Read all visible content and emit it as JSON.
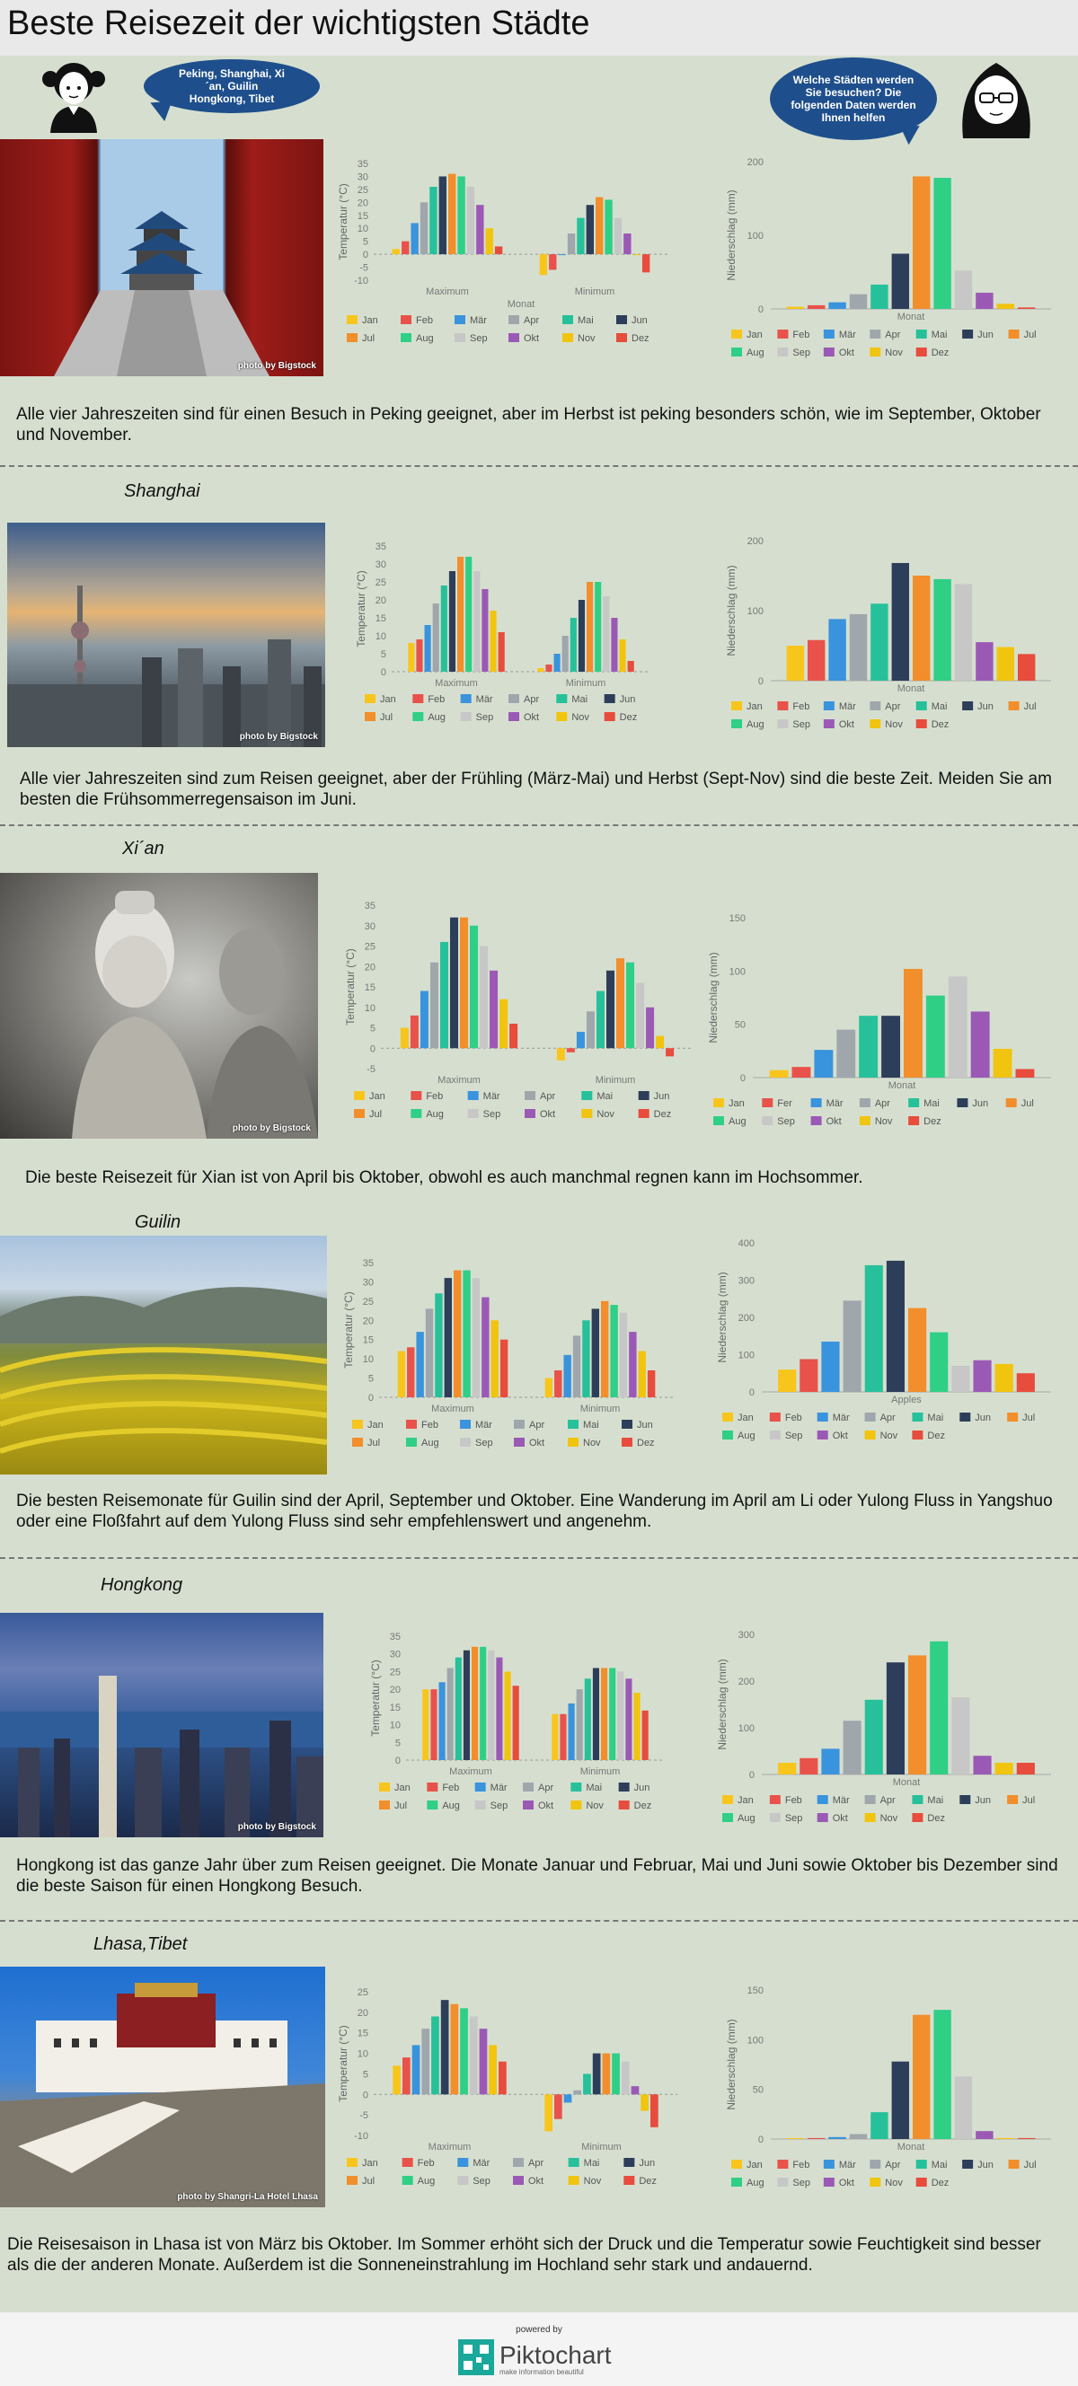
{
  "page": {
    "title": "Beste Reisezeit der wichtigsten Städte",
    "bubble_left": "Peking, Shanghai, Xi´an, Guilin Hongkong, Tibet",
    "bubble_right": "Welche Städten werden Sie besuchen? Die folgenden Daten werden Ihnen helfen",
    "powered": "powered by",
    "logo_name": "Piktochart",
    "logo_tag": "make information beautiful"
  },
  "colors": [
    "#f7c51c",
    "#e8524a",
    "#3a93dd",
    "#9fa7ad",
    "#26c19a",
    "#2d3e5a",
    "#f28e2b",
    "#2fcf86",
    "#c7c7c7",
    "#9b59b6",
    "#f1c40f",
    "#e74c3c"
  ],
  "months": [
    "Jan",
    "Feb",
    "Mär",
    "Apr",
    "Mai",
    "Jun",
    "Jul",
    "Aug",
    "Sep",
    "Okt",
    "Nov",
    "Dez"
  ],
  "sections": [
    {
      "name": "",
      "desc": "Alle vier Jahreszeiten sind für einen Besuch in Peking geeignet, aber im Herbst ist peking besonders schön, wie im September, Oktober und November.",
      "credit": "photo by Bigstock",
      "temp_chart": {
        "type": "bar",
        "ylabel": "Temperatur (°C)",
        "xlabel": "Monat",
        "groups": [
          "Maximum",
          "Minimum"
        ],
        "ylim": [
          -10,
          35
        ],
        "ticks": [
          35,
          30,
          25,
          20,
          15,
          10,
          5,
          0,
          -5,
          -10
        ],
        "legend_months": [
          "Jan",
          "Feb",
          "Mär",
          "Apr",
          "Mai",
          "Jun",
          "Jul",
          "Aug",
          "Sep",
          "Okt",
          "Nov",
          "Dez"
        ],
        "series": [
          {
            "group": "Maximum",
            "values": [
              2,
              5,
              12,
              20,
              26,
              30,
              31,
              30,
              26,
              19,
              10,
              3
            ]
          },
          {
            "group": "Minimum",
            "values": [
              -8,
              -6,
              0,
              8,
              14,
              19,
              22,
              21,
              14,
              8,
              0,
              -7
            ]
          }
        ]
      },
      "rain_chart": {
        "type": "bar",
        "ylabel": "Niederschlag (mm)",
        "xlabel": "Monat",
        "ylim": [
          0,
          200
        ],
        "ticks": [
          200,
          100,
          0
        ],
        "legend_months": [
          "Jan",
          "Feb",
          "Mär",
          "Apr",
          "Mai",
          "Jun",
          "Jul",
          "Aug",
          "Sep",
          "Okt",
          "Nov",
          "Dez"
        ],
        "values": [
          3,
          5,
          9,
          20,
          33,
          75,
          180,
          178,
          52,
          22,
          7,
          2
        ]
      }
    },
    {
      "name": "Shanghai",
      "desc": "Alle vier Jahreszeiten sind zum Reisen geeignet, aber der Frühling (März-Mai) und Herbst (Sept-Nov) sind die beste Zeit. Meiden Sie am besten die Frühsommerregensaison im Juni.",
      "credit": "photo by Bigstock",
      "temp_chart": {
        "type": "bar",
        "ylabel": "Temperatur (°C)",
        "xlabel": "",
        "groups": [
          "Maximum",
          "Minimum"
        ],
        "ylim": [
          0,
          35
        ],
        "ticks": [
          35,
          30,
          25,
          20,
          15,
          10,
          5,
          0
        ],
        "legend_months": [
          "Jan",
          "Feb",
          "Mär",
          "Apr",
          "Mai",
          "Jun",
          "Jul",
          "Aug",
          "Sep",
          "Okt",
          "Nov",
          "Dez"
        ],
        "series": [
          {
            "group": "Maximum",
            "values": [
              8,
              9,
              13,
              19,
              24,
              28,
              32,
              32,
              28,
              23,
              17,
              11
            ]
          },
          {
            "group": "Minimum",
            "values": [
              1,
              2,
              5,
              10,
              15,
              20,
              25,
              25,
              21,
              15,
              9,
              3
            ]
          }
        ]
      },
      "rain_chart": {
        "type": "bar",
        "ylabel": "Niederschlag (mm)",
        "xlabel": "Monat",
        "ylim": [
          0,
          200
        ],
        "ticks": [
          200,
          100,
          0
        ],
        "legend_months": [
          "Jan",
          "Feb",
          "Mär",
          "Apr",
          "Mai",
          "Jun",
          "Jul",
          "Aug",
          "Sep",
          "Okt",
          "Nov",
          "Dez"
        ],
        "values": [
          50,
          58,
          88,
          95,
          110,
          168,
          150,
          145,
          138,
          55,
          48,
          38
        ]
      }
    },
    {
      "name": "Xi´an",
      "desc": "Die beste Reisezeit für Xian ist von April bis Oktober, obwohl es auch manchmal regnen kann im Hochsommer.",
      "credit": "photo by Bigstock",
      "temp_chart": {
        "type": "bar",
        "ylabel": "Temperatur (°C)",
        "xlabel": "",
        "groups": [
          "Maximum",
          "Minimum"
        ],
        "ylim": [
          -5,
          35
        ],
        "ticks": [
          35,
          30,
          25,
          20,
          15,
          10,
          5,
          0,
          -5
        ],
        "legend_months": [
          "Jan",
          "Feb",
          "Mär",
          "Apr",
          "Mai",
          "Jun",
          "Jul",
          "Aug",
          "Sep",
          "Okt",
          "Nov",
          "Dez"
        ],
        "series": [
          {
            "group": "Maximum",
            "values": [
              5,
              8,
              14,
              21,
              26,
              32,
              32,
              30,
              25,
              19,
              12,
              6
            ]
          },
          {
            "group": "Minimum",
            "values": [
              -3,
              -1,
              4,
              9,
              14,
              19,
              22,
              21,
              16,
              10,
              3,
              -2
            ]
          }
        ]
      },
      "rain_chart": {
        "type": "bar",
        "ylabel": "Niederschlag (mm)",
        "xlabel": "Monat",
        "ylim": [
          0,
          150
        ],
        "ticks": [
          150,
          100,
          50,
          0
        ],
        "legend_months": [
          "Jan",
          "Fer",
          "Mär",
          "Apr",
          "Mai",
          "Jun",
          "Jul",
          "Aug",
          "Sep",
          "Okt",
          "Nov",
          "Dez"
        ],
        "values": [
          7,
          10,
          26,
          45,
          58,
          58,
          102,
          77,
          95,
          62,
          27,
          8
        ]
      }
    },
    {
      "name": "Guilin",
      "desc": "Die besten Reisemonate für Guilin sind der April, September und Oktober. Eine Wanderung im April am Li oder Yulong Fluss in Yangshuo oder eine Floßfahrt auf dem Yulong Fluss sind sehr empfehlenswert und angenehm.",
      "credit": "",
      "temp_chart": {
        "type": "bar",
        "ylabel": "Temperatur (°C)",
        "xlabel": "",
        "groups": [
          "Maximum",
          "Minimum"
        ],
        "ylim": [
          0,
          35
        ],
        "ticks": [
          35,
          30,
          25,
          20,
          15,
          10,
          5,
          0
        ],
        "legend_months": [
          "Jan",
          "Feb",
          "Mär",
          "Apr",
          "Mai",
          "Jun",
          "Jul",
          "Aug",
          "Sep",
          "Okt",
          "Nov",
          "Dez"
        ],
        "series": [
          {
            "group": "Maximum",
            "values": [
              12,
              13,
              17,
              23,
              27,
              31,
              33,
              33,
              31,
              26,
              20,
              15
            ]
          },
          {
            "group": "Minimum",
            "values": [
              5,
              7,
              11,
              16,
              20,
              23,
              25,
              24,
              22,
              17,
              12,
              7
            ]
          }
        ]
      },
      "rain_chart": {
        "type": "bar",
        "ylabel": "Niederschlag (mm)",
        "xlabel": "Apples",
        "ylim": [
          0,
          400
        ],
        "ticks": [
          400,
          300,
          200,
          100,
          0
        ],
        "legend_months": [
          "Jan",
          "Feb",
          "Mär",
          "Apr",
          "Mai",
          "Jun",
          "Jul",
          "Aug",
          "Sep",
          "Okt",
          "Nov",
          "Dez"
        ],
        "values": [
          60,
          88,
          135,
          245,
          340,
          352,
          225,
          160,
          70,
          85,
          75,
          50
        ]
      }
    },
    {
      "name": "Hongkong",
      "desc": "Hongkong ist das ganze Jahr über zum Reisen geeignet. Die Monate Januar und Februar, Mai und Juni sowie Oktober bis Dezember sind die beste Saison für einen Hongkong Besuch.",
      "credit": "photo by Bigstock",
      "temp_chart": {
        "type": "bar",
        "ylabel": "Temperatur (°C)",
        "xlabel": "",
        "groups": [
          "Maximum",
          "Minimum"
        ],
        "ylim": [
          0,
          35
        ],
        "ticks": [
          35,
          30,
          25,
          20,
          15,
          10,
          5,
          0
        ],
        "legend_months": [
          "Jan",
          "Feb",
          "Mär",
          "Apr",
          "Mai",
          "Jun",
          "Jul",
          "Aug",
          "Sep",
          "Okt",
          "Nov",
          "Dez"
        ],
        "series": [
          {
            "group": "Maximum",
            "values": [
              20,
              20,
              22,
              26,
              29,
              31,
              32,
              32,
              31,
              29,
              25,
              21
            ]
          },
          {
            "group": "Minimum",
            "values": [
              13,
              13,
              16,
              20,
              23,
              26,
              26,
              26,
              25,
              23,
              19,
              14
            ]
          }
        ]
      },
      "rain_chart": {
        "type": "bar",
        "ylabel": "Niederschlag (mm)",
        "xlabel": "Monat",
        "ylim": [
          0,
          300
        ],
        "ticks": [
          300,
          200,
          100,
          0
        ],
        "legend_months": [
          "Jan",
          "Feb",
          "Mär",
          "Apr",
          "Mai",
          "Jun",
          "Jul",
          "Aug",
          "Sep",
          "Okt",
          "Nov",
          "Dez"
        ],
        "values": [
          25,
          35,
          55,
          115,
          160,
          240,
          255,
          285,
          165,
          40,
          25,
          25
        ]
      }
    },
    {
      "name": "Lhasa,Tibet",
      "desc": "Die Reisesaison in Lhasa ist von März bis Oktober. Im Sommer erhöht sich der Druck und die Temperatur sowie Feuchtigkeit sind besser als die der anderen Monate. Außerdem ist die Sonneneinstrahlung im Hochland sehr stark und andauernd.",
      "credit": "photo by Shangri-La Hotel Lhasa",
      "temp_chart": {
        "type": "bar",
        "ylabel": "Temperatur (°C)",
        "xlabel": "",
        "groups": [
          "Maximum",
          "Minimum"
        ],
        "ylim": [
          -10,
          25
        ],
        "ticks": [
          25,
          20,
          15,
          10,
          5,
          0,
          -5,
          -10
        ],
        "legend_months": [
          "Jan",
          "Feb",
          "Mär",
          "Apr",
          "Mai",
          "Jun",
          "Jul",
          "Aug",
          "Sep",
          "Okt",
          "Nov",
          "Dez"
        ],
        "series": [
          {
            "group": "Maximum",
            "values": [
              7,
              9,
              12,
              16,
              19,
              23,
              22,
              21,
              19,
              16,
              12,
              8
            ]
          },
          {
            "group": "Minimum",
            "values": [
              -9,
              -6,
              -2,
              1,
              5,
              10,
              10,
              10,
              8,
              2,
              -4,
              -8
            ]
          }
        ]
      },
      "rain_chart": {
        "type": "bar",
        "ylabel": "Niederschlag (mm)",
        "xlabel": "Monat",
        "ylim": [
          0,
          150
        ],
        "ticks": [
          150,
          100,
          50,
          0
        ],
        "legend_months": [
          "Jan",
          "Feb",
          "Mär",
          "Apr",
          "Mai",
          "Jun",
          "Jul",
          "Aug",
          "Sep",
          "Okt",
          "Nov",
          "Dez"
        ],
        "values": [
          1,
          1,
          2,
          5,
          27,
          78,
          125,
          130,
          63,
          8,
          1,
          1
        ]
      }
    }
  ]
}
